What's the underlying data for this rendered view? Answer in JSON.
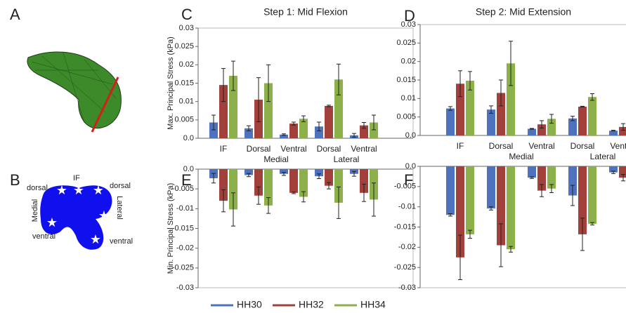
{
  "panel_labels": [
    "A",
    "B",
    "C",
    "D",
    "E",
    "F"
  ],
  "diagram": {
    "labels": [
      "dorsal",
      "IF",
      "dorsal",
      "Medial",
      "Lateral",
      "ventral",
      "ventral"
    ]
  },
  "legend": [
    {
      "name": "HH30",
      "color": "#4f72be"
    },
    {
      "name": "HH32",
      "color": "#a2403c"
    },
    {
      "name": "HH34",
      "color": "#8db14a"
    }
  ],
  "chart_data": [
    {
      "type": "bar",
      "title": "Step 1: Mid Flexion",
      "ylabel": "Max. Principal Stress (kPa)",
      "categories": [
        "IF",
        "Dorsal",
        "Ventral",
        "Dorsal",
        "Ventral"
      ],
      "groups": [
        "Medial",
        "Lateral"
      ],
      "ylim": [
        0,
        0.03
      ],
      "yticks": [
        {
          "value": 0,
          "label": "0.0"
        },
        0.005,
        0.01,
        0.015,
        0.02,
        0.025,
        0.03
      ],
      "series": [
        {
          "values": [
            0.0043,
            0.0027,
            0.001,
            0.0032,
            0.0008
          ],
          "errors": [
            0.002,
            0.0007,
            0.0002,
            0.0012,
            0.0005
          ]
        },
        {
          "values": [
            0.0145,
            0.0105,
            0.004,
            0.0088,
            0.0035
          ],
          "errors": [
            0.0045,
            0.006,
            0.0004,
            0.0002,
            0.0008
          ]
        },
        {
          "values": [
            0.017,
            0.015,
            0.0053,
            0.016,
            0.0043
          ],
          "errors": [
            0.004,
            0.005,
            0.0008,
            0.0042,
            0.002
          ]
        }
      ]
    },
    {
      "type": "bar",
      "title": "Step 2: Mid Extension",
      "categories": [
        "IF",
        "Dorsal",
        "Ventral",
        "Dorsal",
        "Ventral"
      ],
      "groups": [
        "Medial",
        "Lateral"
      ],
      "ylim": [
        0,
        0.03
      ],
      "yticks": [
        {
          "value": 0,
          "label": "0.0"
        },
        0.005,
        0.01,
        0.015,
        0.02,
        0.025,
        0.03
      ],
      "series": [
        {
          "values": [
            0.0073,
            0.007,
            0.0018,
            0.0046,
            0.0013
          ],
          "errors": [
            0.0005,
            0.001,
            0.0001,
            0.0006,
            0.0001
          ]
        },
        {
          "values": [
            0.014,
            0.0115,
            0.003,
            0.0078,
            0.0023
          ],
          "errors": [
            0.0035,
            0.0035,
            0.001,
            0.0001,
            0.0009
          ]
        },
        {
          "values": [
            0.0148,
            0.0195,
            0.0045,
            0.0104,
            0.0019
          ],
          "errors": [
            0.0025,
            0.006,
            0.0012,
            0.0009,
            0.0007
          ]
        }
      ]
    },
    {
      "type": "bar",
      "ylabel": "Min. Principal Stress (kPa)",
      "ylim": [
        -0.03,
        0
      ],
      "yticks": [
        {
          "value": 0,
          "label": "0.0"
        },
        -0.005,
        -0.01,
        -0.015,
        -0.02,
        -0.025,
        -0.03
      ],
      "series": [
        {
          "values": [
            -0.0023,
            -0.0015,
            -0.0012,
            -0.0018,
            -0.0012
          ],
          "errors": [
            0.0012,
            0.0004,
            0.0004,
            0.0006,
            0.0006
          ]
        },
        {
          "values": [
            -0.008,
            -0.0067,
            -0.006,
            -0.0042,
            -0.006
          ],
          "errors": [
            0.0028,
            0.0022,
            0.0002,
            0.0008,
            0.0022
          ]
        },
        {
          "values": [
            -0.0102,
            -0.0092,
            -0.007,
            -0.0085,
            -0.0077
          ],
          "errors": [
            0.0042,
            0.002,
            0.0013,
            0.004,
            0.0042
          ]
        }
      ]
    },
    {
      "type": "bar",
      "ylim": [
        -0.03,
        0
      ],
      "yticks": [
        {
          "value": 0,
          "label": "0.0"
        },
        -0.005,
        -0.01,
        -0.015,
        -0.02,
        -0.025,
        -0.03
      ],
      "series": [
        {
          "values": [
            -0.012,
            -0.0104,
            -0.0028,
            -0.0072,
            -0.0015
          ],
          "errors": [
            0.0003,
            0.0004,
            0.0002,
            0.0025,
            0.0003
          ]
        },
        {
          "values": [
            -0.0225,
            -0.0195,
            -0.006,
            -0.0168,
            -0.0028
          ],
          "errors": [
            0.0055,
            0.0053,
            0.0015,
            0.004,
            0.0008
          ]
        },
        {
          "values": [
            -0.0168,
            -0.0205,
            -0.0055,
            -0.0142,
            -0.002
          ],
          "errors": [
            0.001,
            0.0007,
            0.001,
            0.0003,
            0.0006
          ]
        }
      ]
    }
  ]
}
